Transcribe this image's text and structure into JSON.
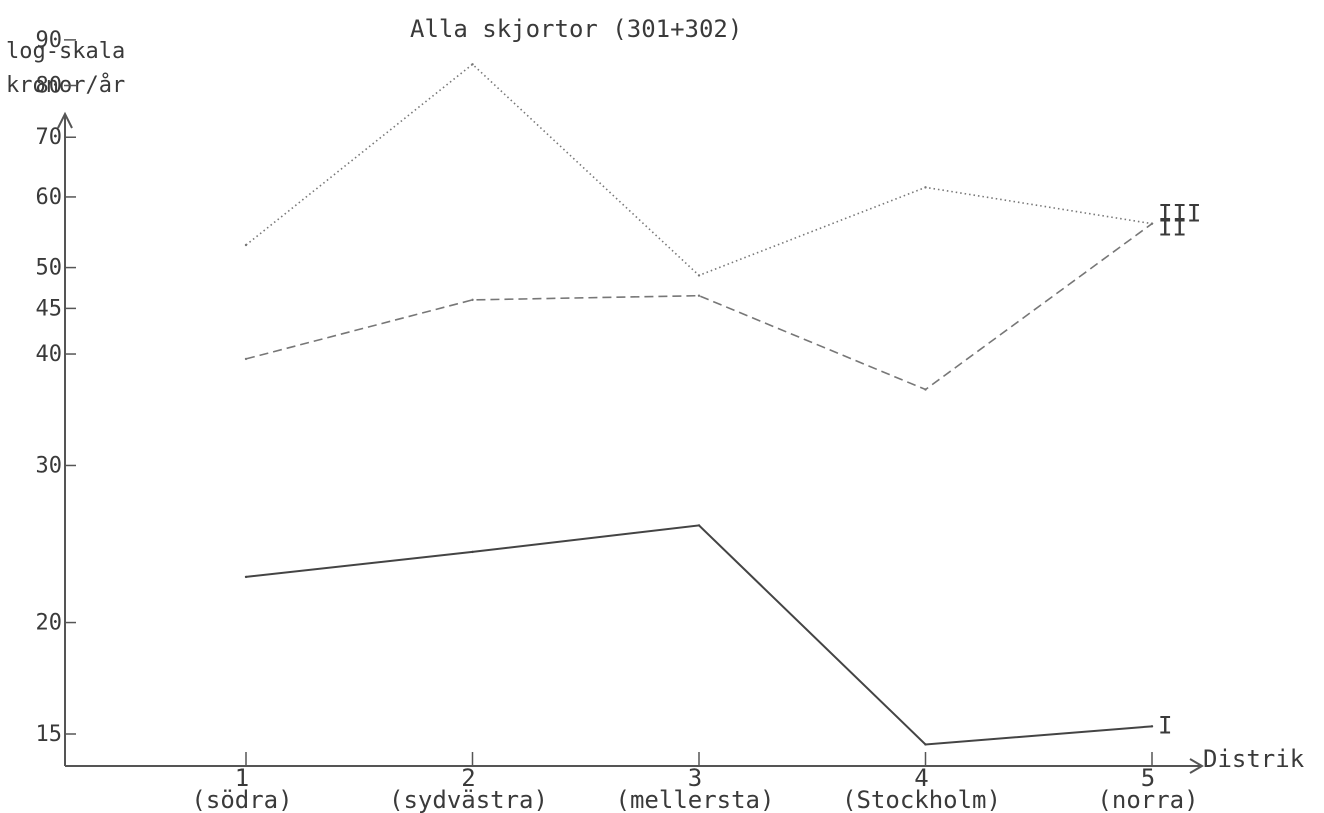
{
  "chart_data": {
    "type": "line",
    "title": "Alla skjortor (301+302)",
    "ylabel": [
      "log-skala",
      "kronor/år"
    ],
    "xlabel": "Distrik",
    "yscale": "log",
    "ylim": [
      14,
      100
    ],
    "yticks": [
      15,
      20,
      30,
      40,
      45,
      50,
      60,
      70,
      80,
      90
    ],
    "categories": [
      "1",
      "2",
      "3",
      "4",
      "5"
    ],
    "category_names": [
      "(södra)",
      "(sydvästra)",
      "(mellersta)",
      "(Stockholm)",
      "(norra)"
    ],
    "series": [
      {
        "name": "I",
        "style": "solid",
        "color": "#444444",
        "values": [
          22.5,
          24,
          25.7,
          14.6,
          15.3
        ]
      },
      {
        "name": "II",
        "style": "dashed",
        "color": "#777777",
        "values": [
          39.5,
          46,
          46.5,
          36.5,
          56
        ]
      },
      {
        "name": "III",
        "style": "dotted",
        "color": "#777777",
        "values": [
          53,
          84.5,
          49,
          61.5,
          56
        ]
      }
    ],
    "grid": false,
    "legend": "series labels at line ends"
  }
}
